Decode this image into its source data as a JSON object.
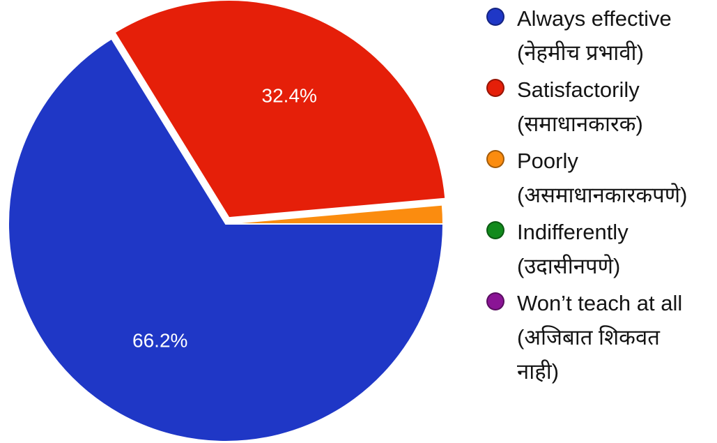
{
  "chart_data": {
    "type": "pie",
    "title": "",
    "slices": [
      {
        "label": "Always effective\n(नेहमीच प्रभावी)",
        "value": 66.2,
        "display": "66.2%",
        "color": "#1f37c6"
      },
      {
        "label": "Satisfactorily\n(समाधानकारक)",
        "value": 32.4,
        "display": "32.4%",
        "color": "#e51f09"
      },
      {
        "label": "Poorly\n(असमाधानकारकपणे)",
        "value": 1.4,
        "display": "",
        "color": "#fb8c0f"
      },
      {
        "label": "Indifferently\n(उदासीनपणे)",
        "value": 0,
        "display": "",
        "color": "#118a1c"
      },
      {
        "label": "Won’t teach at all\n(अजिबात शिकवत\nनाही)",
        "value": 0,
        "display": "",
        "color": "#8a1495"
      }
    ],
    "legend_position": "right"
  }
}
